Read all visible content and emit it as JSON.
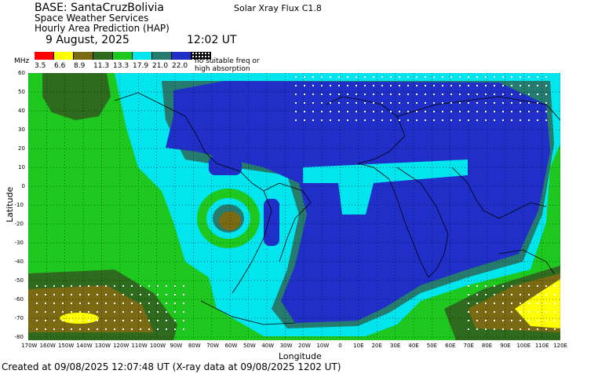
{
  "header": {
    "base": "BASE: SantaCruzBolivia",
    "line1": "Space Weather Services",
    "line2": "Hourly Area Prediction (HAP)",
    "date": "9 August, 2025",
    "time": "12:02 UT",
    "flux": "Solar Xray Flux C1.8"
  },
  "legend": {
    "unit": "MHz",
    "items": [
      {
        "value": "3.5",
        "color": "#ff0000"
      },
      {
        "value": "6.6",
        "color": "#ffff00"
      },
      {
        "value": "8.9",
        "color": "#7a6a14"
      },
      {
        "value": "11.3",
        "color": "#2e6b1e"
      },
      {
        "value": "13.3",
        "color": "#1ec81e"
      },
      {
        "value": "17.9",
        "color": "#00e5ee"
      },
      {
        "value": "21.0",
        "color": "#257c6e"
      },
      {
        "value": "22.0",
        "color": "#1f2fc8"
      }
    ],
    "no_freq_text": "no suitable freq or high absorption"
  },
  "axes": {
    "y_title": "Latitude",
    "x_title": "Longitude",
    "y_ticks": [
      "60",
      "50",
      "40",
      "30",
      "20",
      "10",
      "0",
      "-10",
      "-20",
      "-30",
      "-40",
      "-50",
      "-60",
      "-70",
      "-80"
    ],
    "x_ticks": [
      "170W",
      "160W",
      "150W",
      "140W",
      "130W",
      "120W",
      "110W",
      "100W",
      "90W",
      "80W",
      "70W",
      "60W",
      "50W",
      "40W",
      "30W",
      "20W",
      "10W",
      "0",
      "10E",
      "20E",
      "30E",
      "40E",
      "50E",
      "60E",
      "70E",
      "80E",
      "90E",
      "100E",
      "110E",
      "120E"
    ]
  },
  "footer": "Created at 09/08/2025 12:07:48 UT (X-ray data at 09/08/2025 1202 UT)"
}
